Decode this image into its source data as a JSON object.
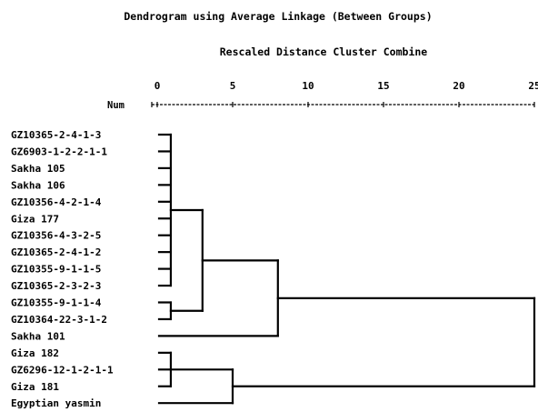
{
  "title": "Dendrogram using Average Linkage (Between Groups)",
  "subtitle": "Rescaled Distance Cluster Combine",
  "chart_data": {
    "type": "dendrogram",
    "axis_label": "Num",
    "ticks": [
      "0",
      "5",
      "10",
      "15",
      "20",
      "25"
    ],
    "xlim": [
      0,
      25
    ],
    "leaves": [
      "GZ10365-2-4-1-3",
      "GZ6903-1-2-2-1-1",
      "Sakha 105",
      "Sakha 106",
      "GZ10356-4-2-1-4",
      "Giza 177",
      "GZ10356-4-3-2-5",
      "GZ10365-2-4-1-2",
      "GZ10355-9-1-1-5",
      "GZ10365-2-3-2-3",
      "GZ10355-9-1-1-4",
      "GZ10364-22-3-1-2",
      "Sakha 101",
      "Giza 182",
      "GZ6296-12-1-2-1-1",
      "Giza 181",
      "Egyptian yasmin"
    ],
    "merges": [
      {
        "children": [
          0,
          1,
          2,
          3,
          4,
          5,
          6,
          7,
          8,
          9
        ],
        "distance": 0.9
      },
      {
        "children": [
          10,
          11
        ],
        "distance": 0.9
      },
      {
        "children": [
          13,
          14,
          15
        ],
        "distance": 0.9
      },
      {
        "children": [
          "m0",
          "m1"
        ],
        "distance": 3.0
      },
      {
        "children": [
          "m3",
          12
        ],
        "distance": 8.0
      },
      {
        "children": [
          "m2",
          16
        ],
        "distance": 5.0
      },
      {
        "children": [
          "m4",
          "m5"
        ],
        "distance": 25.0
      }
    ]
  }
}
